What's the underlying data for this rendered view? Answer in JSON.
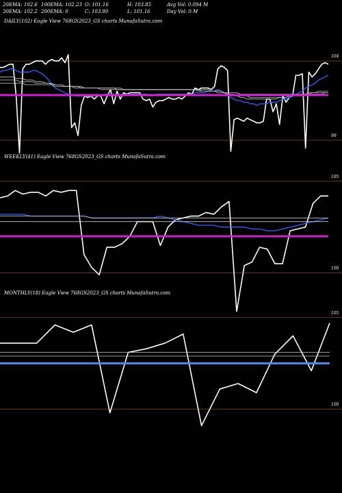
{
  "header": {
    "stats": [
      [
        "20EMA: 102.6",
        "100EMA: 102.23",
        "O: 101.16",
        "H: 103.85",
        "Avg Vol: 0.094 M"
      ],
      [
        "30EMA: 102.2",
        "200EMA: 0",
        "C: 103.80",
        "L: 101.16",
        "Day Vol: 0  M"
      ]
    ]
  },
  "colors": {
    "background": "#000000",
    "price": "#ffffff",
    "ema_fast": "#2a66ff",
    "ema_slow": "#cccccc",
    "level_magenta": "#d020d0",
    "level_blue": "#4f8fe8",
    "grid": "#8b4a1c"
  },
  "chart_data": [
    {
      "type": "line",
      "label": "DAILY(102) Eagle  View  768GS2023_GS charts MunafaSutra.com",
      "y_tick_labels": [
        "104",
        "99"
      ],
      "ylim": [
        98,
        105
      ],
      "grid_levels": [
        104,
        99
      ],
      "level_lines": [
        {
          "value": 101.85,
          "color": "magenta"
        }
      ],
      "series": [
        {
          "name": "price",
          "values": [
            103.6,
            103.6,
            103.7,
            103.8,
            103.8,
            101.7,
            98.2,
            103.5,
            103.8,
            103.8,
            103.9,
            104.0,
            104.0,
            104.0,
            103.8,
            104.0,
            104.1,
            104.0,
            104.0,
            104.2,
            103.9,
            104.4,
            99.8,
            100.1,
            99.3,
            101.2,
            101.8,
            101.7,
            101.8,
            101.6,
            101.8,
            101.8,
            101.3,
            101.8,
            102.2,
            101.3,
            102.1,
            101.6,
            102.0,
            101.9,
            102.0,
            102.0,
            102.0,
            102.0,
            101.6,
            101.5,
            101.6,
            101.1,
            101.4,
            101.5,
            101.5,
            101.6,
            101.7,
            101.6,
            101.6,
            101.7,
            101.6,
            101.8,
            102.0,
            101.9,
            102.3,
            102.2,
            102.3,
            102.3,
            102.3,
            102.2,
            102.4,
            103.5,
            103.7,
            103.6,
            103.4,
            98.3,
            100.3,
            100.4,
            100.3,
            100.2,
            100.4,
            100.3,
            100.2,
            100.1,
            100.1,
            100.2,
            101.6,
            101.6,
            100.8,
            101.3,
            100.0,
            101.8,
            101.4,
            101.7,
            101.8,
            103.1,
            103.1,
            103.2,
            98.5,
            103.3,
            103.0,
            103.2,
            103.5,
            103.8,
            103.9,
            103.8
          ]
        },
        {
          "name": "ema_fast",
          "values": [
            103.3,
            103.4,
            103.4,
            103.5,
            103.5,
            103.4,
            103.3,
            103.3,
            103.3,
            103.3,
            103.4,
            103.4,
            103.3,
            103.2,
            103.0,
            102.8,
            102.5,
            102.3,
            102.2,
            102.1,
            102.0,
            101.9,
            101.9,
            101.8,
            101.8,
            101.8,
            101.8,
            101.8,
            101.8,
            101.8,
            101.8,
            101.8,
            101.9,
            101.9,
            101.9,
            101.9,
            101.8,
            101.8,
            101.8,
            101.9,
            101.9,
            101.9,
            101.9,
            101.9,
            101.9,
            101.9,
            101.8,
            101.8,
            101.9,
            101.9,
            101.9,
            101.9,
            101.9,
            101.9,
            101.9,
            101.9,
            101.9,
            101.9,
            101.9,
            101.9,
            102.0,
            102.0,
            102.0,
            102.0,
            102.1,
            102.1,
            102.1,
            102.2,
            102.1,
            102.0,
            101.9,
            101.7,
            101.6,
            101.5,
            101.5,
            101.4,
            101.4,
            101.3,
            101.3,
            101.2,
            101.3,
            101.3,
            101.3,
            101.4,
            101.4,
            101.4,
            101.5,
            101.6,
            101.6,
            101.7,
            101.8,
            101.9,
            102.0,
            102.1,
            102.3,
            102.4,
            102.5,
            102.6,
            102.8,
            102.9,
            103.0,
            103.1
          ]
        },
        {
          "name": "ema_slow_1",
          "values": [
            103.0,
            103.0,
            103.0,
            103.0,
            103.0,
            102.9,
            102.9,
            102.9,
            102.8,
            102.8,
            102.8,
            102.7,
            102.7,
            102.7,
            102.6,
            102.6,
            102.6,
            102.5,
            102.5,
            102.5,
            102.4,
            102.4,
            102.4,
            102.3,
            102.3,
            102.3,
            102.3,
            102.3,
            102.3,
            102.3,
            102.3,
            102.2,
            102.2,
            102.2,
            102.2,
            102.2,
            102.2,
            102.2,
            102.2,
            102.2,
            102.2,
            102.2,
            102.2,
            102.2,
            102.2,
            102.2,
            102.2,
            102.2,
            102.2,
            102.2,
            102.2,
            102.2,
            102.2,
            102.2,
            102.2,
            102.2,
            102.2,
            102.2,
            102.2,
            102.2,
            102.2,
            102.2,
            102.2,
            102.2,
            102.2,
            102.1,
            102.1,
            102.1,
            102.1,
            102.0,
            101.9,
            101.9,
            101.8,
            101.8,
            101.7,
            101.7,
            101.6,
            101.6,
            101.6,
            101.6,
            101.6,
            101.6,
            101.6,
            101.6,
            101.6,
            101.6,
            101.7,
            101.7,
            101.7,
            101.8,
            101.8,
            101.8,
            101.9,
            101.9,
            101.9,
            102.0,
            102.0,
            102.0,
            102.1,
            102.1,
            102.1,
            102.1
          ]
        },
        {
          "name": "ema_slow_2",
          "values": [
            102.8,
            102.8,
            102.8,
            102.8,
            102.8,
            102.8,
            102.7,
            102.7,
            102.7,
            102.7,
            102.7,
            102.6,
            102.6,
            102.6,
            102.6,
            102.6,
            102.5,
            102.5,
            102.5,
            102.5,
            102.4,
            102.4,
            102.4,
            102.4,
            102.4,
            102.4,
            102.3,
            102.3,
            102.3,
            102.3,
            102.3,
            102.3,
            102.3,
            102.3,
            102.3,
            102.3,
            102.2,
            102.2,
            102.2,
            102.2,
            102.2,
            102.2,
            102.2,
            102.2,
            102.2,
            102.2,
            102.2,
            102.2,
            102.2,
            102.2,
            102.2,
            102.2,
            102.2,
            102.2,
            102.2,
            102.2,
            102.2,
            102.2,
            102.2,
            102.2,
            102.2,
            102.2,
            102.1,
            102.1,
            102.1,
            102.1,
            102.1,
            102.0,
            102.0,
            102.0,
            101.9,
            101.9,
            101.9,
            101.8,
            101.8,
            101.8,
            101.8,
            101.7,
            101.7,
            101.7,
            101.7,
            101.7,
            101.7,
            101.7,
            101.7,
            101.7,
            101.7,
            101.7,
            101.7,
            101.8,
            101.8,
            101.8,
            101.8,
            101.8,
            101.9,
            101.9,
            101.9,
            101.9,
            101.9,
            101.9,
            102.0,
            102.0
          ]
        },
        {
          "name": "ema_slow_3",
          "values": [
            102.6,
            102.6,
            102.6,
            102.6,
            102.6,
            102.6,
            102.6,
            102.6,
            102.5,
            102.5,
            102.5,
            102.5,
            102.5,
            102.5,
            102.5,
            102.5,
            102.5,
            102.4,
            102.4,
            102.4,
            102.4,
            102.4,
            102.4,
            102.4,
            102.4,
            102.3,
            102.3,
            102.3,
            102.3,
            102.3,
            102.3,
            102.3,
            102.3,
            102.3,
            102.3,
            102.3,
            102.3,
            102.3,
            102.2,
            102.2,
            102.2,
            102.2,
            102.2,
            102.2,
            102.2,
            102.2,
            102.2,
            102.2,
            102.2,
            102.2,
            102.2,
            102.2,
            102.2,
            102.2,
            102.2,
            102.2,
            102.2,
            102.2,
            102.2,
            102.2,
            102.2,
            102.1,
            102.1,
            102.1,
            102.1,
            102.1,
            102.1,
            102.1,
            102.1,
            102.0,
            102.0,
            102.0,
            102.0,
            102.0,
            101.9,
            101.9,
            101.9,
            101.9,
            101.9,
            101.9,
            101.9,
            101.9,
            101.9,
            101.9,
            101.9,
            101.9,
            101.9,
            101.9,
            101.9,
            101.9,
            101.9,
            101.9,
            101.9,
            101.9,
            101.9,
            101.9,
            102.0,
            102.0,
            102.0,
            102.0,
            102.0,
            102.0
          ]
        }
      ]
    },
    {
      "type": "line",
      "label": "WEEKLY(41) Eagle  View  768GS2023_GS charts MunafaSutra.com",
      "y_tick_labels": [
        "105",
        "100"
      ],
      "ylim": [
        99.5,
        106
      ],
      "grid_levels": [
        105,
        100
      ],
      "level_lines": [
        {
          "value": 102.0,
          "color": "magenta"
        }
      ],
      "series": [
        {
          "name": "price",
          "values": [
            104.1,
            104.2,
            104.5,
            104.3,
            104.4,
            104.4,
            104.2,
            104.5,
            104.4,
            104.5,
            104.5,
            101.0,
            100.3,
            99.9,
            101.4,
            101.4,
            101.6,
            102.0,
            102.8,
            102.8,
            102.8,
            101.5,
            102.5,
            102.9,
            103.0,
            103.1,
            103.1,
            103.3,
            103.2,
            103.6,
            103.9,
            97.9,
            100.4,
            100.6,
            101.4,
            101.3,
            100.5,
            100.5,
            102.3,
            102.4,
            102.5,
            103.8,
            104.2,
            104.2
          ]
        },
        {
          "name": "ema_fast",
          "values": [
            103.2,
            103.2,
            103.2,
            103.2,
            103.1,
            103.1,
            103.1,
            103.1,
            103.1,
            103.1,
            103.1,
            103.1,
            103.0,
            103.0,
            103.0,
            103.0,
            103.0,
            103.0,
            103.0,
            103.0,
            103.0,
            103.1,
            103.0,
            102.9,
            102.8,
            102.7,
            102.6,
            102.6,
            102.6,
            102.5,
            102.5,
            102.5,
            102.5,
            102.4,
            102.4,
            102.3,
            102.3,
            102.4,
            102.5,
            102.6,
            102.7,
            102.8,
            102.9,
            103.0
          ]
        },
        {
          "name": "ema_slow_1",
          "values": [
            103.1,
            103.1,
            103.1,
            103.1,
            103.1,
            103.1,
            103.1,
            103.1,
            103.1,
            103.1,
            103.1,
            103.1,
            103.0,
            103.0,
            103.0,
            103.0,
            103.0,
            103.0,
            103.0,
            103.0,
            103.0,
            103.0,
            103.0,
            103.0,
            103.0,
            103.0,
            103.0,
            103.0,
            103.0,
            103.0,
            103.0,
            103.0,
            103.0,
            103.0,
            103.0,
            103.0,
            103.0,
            103.0,
            103.0,
            103.0,
            103.0,
            103.0,
            103.0,
            103.0
          ]
        },
        {
          "name": "ema_slow_2",
          "values": [
            102.8,
            102.8,
            102.8,
            102.8,
            102.8,
            102.8,
            102.8,
            102.8,
            102.8,
            102.8,
            102.8,
            102.8,
            102.8,
            102.8,
            102.8,
            102.8,
            102.8,
            102.8,
            102.8,
            102.8,
            102.8,
            102.8,
            102.8,
            102.8,
            102.8,
            102.8,
            102.8,
            102.8,
            102.8,
            102.8,
            102.8,
            102.8,
            102.8,
            102.8,
            102.8,
            102.8,
            102.8,
            102.8,
            102.8,
            102.8,
            102.8,
            102.8,
            102.8,
            102.8
          ]
        }
      ]
    },
    {
      "type": "line",
      "label": "MONTHLY(18) Eagle  View  768GS2023_GS charts MunafaSutra.com",
      "y_tick_labels": [
        "105",
        "100"
      ],
      "ylim": [
        99.5,
        106
      ],
      "grid_levels": [
        105,
        100
      ],
      "level_lines": [
        {
          "value": 102.5,
          "color": "blue"
        }
      ],
      "series": [
        {
          "name": "price",
          "values": [
            103.6,
            103.6,
            103.6,
            104.6,
            104.2,
            104.6,
            99.8,
            103.1,
            103.3,
            103.6,
            104.1,
            99.1,
            101.1,
            101.4,
            100.9,
            103.0,
            104.0,
            102.1,
            104.7
          ]
        },
        {
          "name": "ema_slow_1",
          "values": [
            103.1,
            103.1,
            103.1,
            103.1,
            103.1,
            103.1,
            103.1,
            103.1,
            103.1,
            103.1,
            103.1,
            103.1,
            103.1,
            103.1,
            103.1,
            103.1,
            103.1,
            103.1,
            103.1
          ]
        },
        {
          "name": "ema_slow_2",
          "values": [
            102.9,
            102.9,
            102.9,
            102.9,
            102.9,
            102.9,
            102.9,
            102.9,
            102.9,
            102.9,
            102.9,
            102.9,
            102.9,
            102.9,
            102.9,
            102.9,
            102.9,
            102.9,
            102.9
          ]
        }
      ]
    }
  ]
}
